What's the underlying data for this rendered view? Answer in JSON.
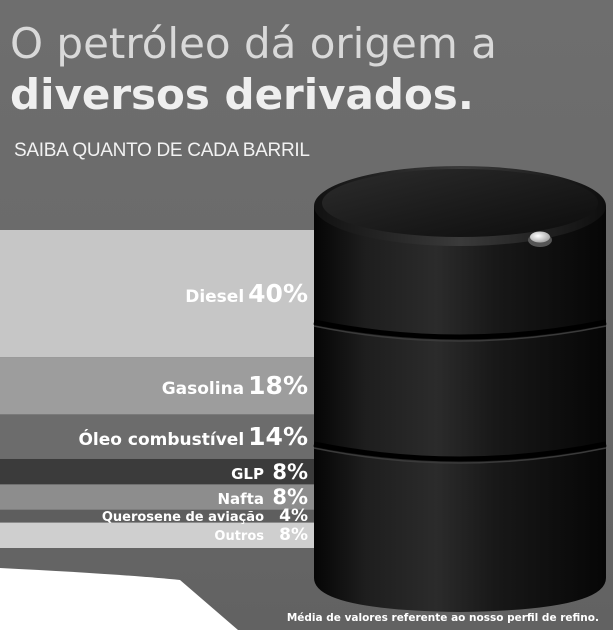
{
  "title_line1": "O petróleo dá origem a",
  "title_line2": "diversos derivados",
  "title_line2_dot": ".",
  "subtitle": "SAIBA QUANTO DE CADA BARRIL",
  "footnote": "Média de valores referente ao nosso perfil de refino.",
  "colors": {
    "background": "#6a6a6a",
    "text_light": "#f2f2f2",
    "barrel": "#141414"
  },
  "chart_data": {
    "type": "bar",
    "orientation": "stacked-horizontal-bands",
    "unit": "%",
    "categories": [
      "Diesel",
      "Gasolina",
      "Óleo combustível",
      "GLP",
      "Nafta",
      "Querosene de aviação",
      "Outros"
    ],
    "values": [
      40,
      18,
      14,
      8,
      8,
      4,
      8
    ],
    "labels": [
      "40%",
      "18%",
      "14%",
      "8%",
      "8%",
      "4%",
      "8%"
    ],
    "band_colors": [
      "#c6c6c6",
      "#9d9d9d",
      "#6c6c6c",
      "#3b3b3b",
      "#8d8d8d",
      "#5e5e5e",
      "#cfcfcf"
    ]
  }
}
